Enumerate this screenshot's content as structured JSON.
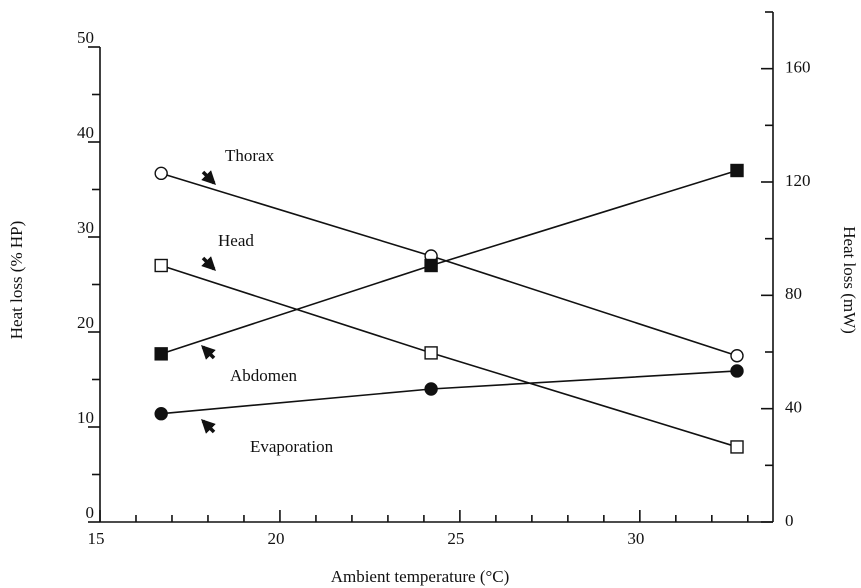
{
  "chart_data": {
    "type": "line",
    "xlabel": "Ambient temperature (°C)",
    "ylabel": "Heat loss (% HP)",
    "y2label": "Heat loss (mW)",
    "x": [
      16.7,
      24.2,
      32.7
    ],
    "xlim": [
      15,
      33.7
    ],
    "xticks": [
      15,
      20,
      25,
      30
    ],
    "xminor_ticks": [
      16,
      17,
      18,
      19,
      21,
      22,
      23,
      24,
      26,
      27,
      28,
      29,
      31,
      32,
      33
    ],
    "ylim": [
      0,
      50
    ],
    "yticks": [
      0,
      10,
      20,
      30,
      40,
      50
    ],
    "yminor_ticks": [
      5,
      15,
      25,
      35,
      45
    ],
    "y2lim": [
      0,
      180
    ],
    "y2ticks": [
      0,
      40,
      80,
      120,
      160
    ],
    "y2minor_ticks": [
      20,
      60,
      100,
      140,
      180
    ],
    "series": [
      {
        "name": "Thorax",
        "color": "#111111",
        "marker": "circle",
        "filled": false,
        "values": [
          36.7,
          28,
          17.5
        ]
      },
      {
        "name": "Head",
        "color": "#111111",
        "marker": "square",
        "filled": false,
        "values": [
          27,
          17.8,
          7.9
        ]
      },
      {
        "name": "Abdomen",
        "color": "#111111",
        "marker": "square",
        "filled": true,
        "values": [
          17.7,
          27,
          37
        ]
      },
      {
        "name": "Evaporation",
        "color": "#111111",
        "marker": "circle",
        "filled": true,
        "values": [
          11.4,
          14,
          15.9
        ]
      }
    ]
  }
}
